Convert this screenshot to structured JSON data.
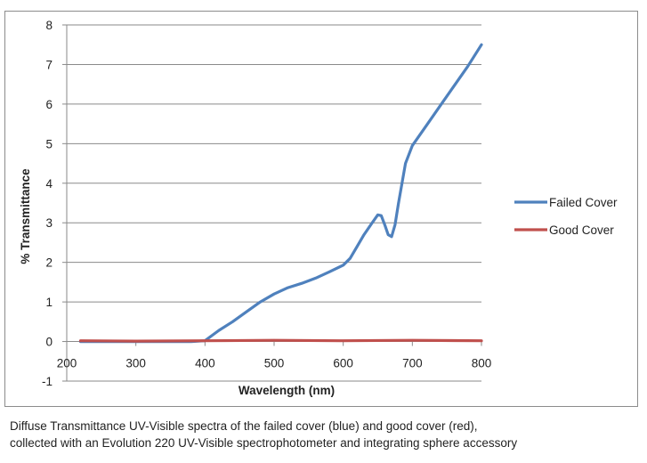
{
  "chart_data": {
    "type": "line",
    "title": "",
    "xlabel": "Wavelength (nm)",
    "ylabel": "% Transmittance",
    "xlim": [
      200,
      800
    ],
    "ylim": [
      -1,
      8
    ],
    "xticks": [
      200,
      300,
      400,
      500,
      600,
      700,
      800
    ],
    "yticks": [
      -1,
      0,
      1,
      2,
      3,
      4,
      5,
      6,
      7,
      8
    ],
    "grid": "horizontal",
    "legend_position": "right",
    "series": [
      {
        "name": "Failed Cover",
        "color": "#4f81bd",
        "x": [
          220,
          300,
          380,
          400,
          410,
          420,
          440,
          460,
          480,
          500,
          520,
          540,
          560,
          580,
          600,
          610,
          620,
          630,
          640,
          650,
          655,
          660,
          665,
          670,
          675,
          680,
          690,
          700,
          720,
          740,
          760,
          780,
          800
        ],
        "y": [
          0.0,
          0.0,
          0.0,
          0.02,
          0.15,
          0.28,
          0.5,
          0.75,
          1.0,
          1.2,
          1.36,
          1.47,
          1.6,
          1.76,
          1.93,
          2.1,
          2.4,
          2.7,
          2.95,
          3.2,
          3.18,
          2.95,
          2.7,
          2.65,
          2.95,
          3.5,
          4.5,
          4.95,
          5.45,
          5.95,
          6.45,
          6.95,
          7.5
        ]
      },
      {
        "name": "Good Cover",
        "color": "#c0504d",
        "x": [
          220,
          300,
          400,
          500,
          600,
          700,
          800
        ],
        "y": [
          0.02,
          0.01,
          0.02,
          0.03,
          0.02,
          0.03,
          0.02
        ]
      }
    ]
  },
  "caption": {
    "line1": "Diffuse Transmittance UV-Visible spectra of the failed cover (blue) and good cover (red),",
    "line2": "collected with an Evolution 220 UV-Visible spectrophotometer and integrating sphere accessory"
  }
}
